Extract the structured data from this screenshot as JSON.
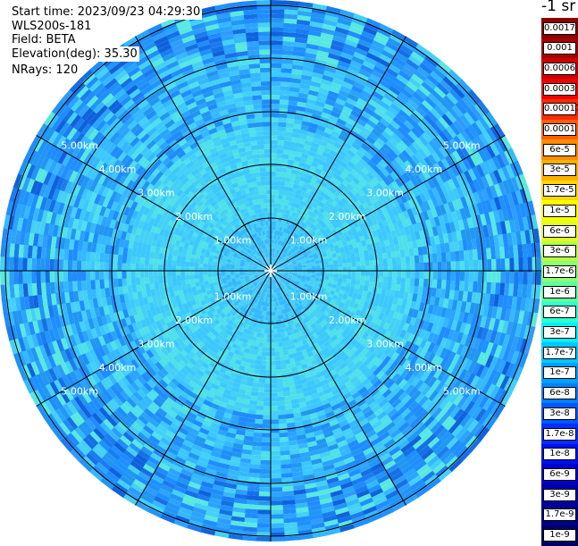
{
  "header": {
    "start_time": "Start time: 2023/09/23 04:29:30",
    "device": "WLS200s-181",
    "field": "Field: BETA",
    "elevation": "Elevation(deg): 35.30",
    "nrays": "NRays: 120"
  },
  "colorbar": {
    "title": "-1 sr",
    "labels": [
      "0.0017",
      "0.001",
      "0.0006",
      "0.0003",
      "0.00017",
      "0.0001",
      "6e-5",
      "3e-5",
      "1.7e-5",
      "1e-5",
      "6e-6",
      "3e-6",
      "1.7e-6",
      "1e-6",
      "6e-7",
      "3e-7",
      "1.7e-7",
      "1e-7",
      "6e-8",
      "3e-8",
      "1.7e-8",
      "1e-8",
      "6e-9",
      "3e-9",
      "1.7e-9",
      "1e-9"
    ],
    "colors": [
      "#8b0000",
      "#a80000",
      "#cc0000",
      "#ee0000",
      "#ff2a00",
      "#ff6000",
      "#ff8c00",
      "#ffb000",
      "#ffd800",
      "#ffff00",
      "#e0ff20",
      "#b8ff48",
      "#90ff70",
      "#60ffa0",
      "#30ffd0",
      "#00f0ff",
      "#00c8ff",
      "#00a0ff",
      "#0080ff",
      "#0058ff",
      "#0030ff",
      "#0010ee",
      "#0000cc",
      "#0000aa",
      "#000088",
      "#000066"
    ]
  },
  "chart_data": {
    "type": "heatmap",
    "projection": "polar PPI",
    "nrays": 120,
    "range_labels": [
      "1.00km",
      "2.00km",
      "3.00km",
      "4.00km",
      "5.00km"
    ],
    "rings_km": [
      1,
      2,
      3,
      4,
      5
    ]
  }
}
